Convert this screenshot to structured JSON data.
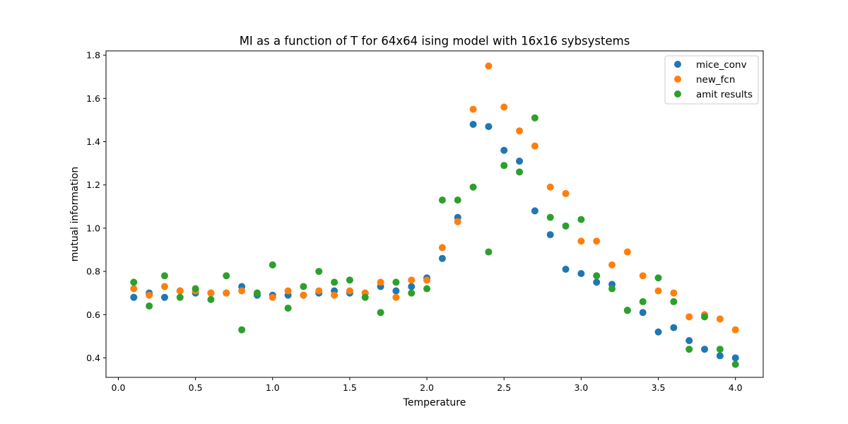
{
  "chart_data": {
    "type": "scatter",
    "title": "MI as a function of T for 64x64 ising model with 16x16 sybsystems",
    "xlabel": "Temperature",
    "ylabel": "mutual information",
    "xlim": [
      -0.08,
      4.18
    ],
    "ylim": [
      0.31,
      1.82
    ],
    "xticks": [
      0.0,
      0.5,
      1.0,
      1.5,
      2.0,
      2.5,
      3.0,
      3.5,
      4.0
    ],
    "xtick_labels": [
      "0.0",
      "0.5",
      "1.0",
      "1.5",
      "2.0",
      "2.5",
      "3.0",
      "3.5",
      "4.0"
    ],
    "yticks": [
      0.4,
      0.6,
      0.8,
      1.0,
      1.2,
      1.4,
      1.6,
      1.8
    ],
    "ytick_labels": [
      "0.4",
      "0.6",
      "0.8",
      "1.0",
      "1.2",
      "1.4",
      "1.6",
      "1.8"
    ],
    "grid": false,
    "legend_position": "top-right",
    "x": [
      0.1,
      0.2,
      0.3,
      0.4,
      0.5,
      0.6,
      0.7,
      0.8,
      0.9,
      1.0,
      1.1,
      1.2,
      1.3,
      1.4,
      1.5,
      1.6,
      1.7,
      1.8,
      1.9,
      2.0,
      2.1,
      2.2,
      2.3,
      2.4,
      2.5,
      2.6,
      2.7,
      2.8,
      2.9,
      3.0,
      3.1,
      3.2,
      3.3,
      3.4,
      3.5,
      3.6,
      3.7,
      3.8,
      3.9,
      4.0
    ],
    "series": [
      {
        "name": "mice_conv",
        "color": "#1f77b4",
        "values": [
          0.68,
          0.7,
          0.68,
          0.71,
          0.7,
          0.7,
          0.7,
          0.73,
          0.69,
          0.69,
          0.69,
          0.69,
          0.7,
          0.71,
          0.7,
          0.7,
          0.73,
          0.71,
          0.73,
          0.77,
          0.86,
          1.05,
          1.48,
          1.47,
          1.36,
          1.31,
          1.08,
          0.97,
          0.81,
          0.79,
          0.75,
          0.74,
          0.62,
          0.61,
          0.52,
          0.54,
          0.48,
          0.44,
          0.41,
          0.4
        ]
      },
      {
        "name": "new_fcn",
        "color": "#ff7f0e",
        "values": [
          0.72,
          0.69,
          0.73,
          0.71,
          0.71,
          0.7,
          0.7,
          0.71,
          0.7,
          0.68,
          0.71,
          0.69,
          0.71,
          0.69,
          0.71,
          0.7,
          0.75,
          0.68,
          0.76,
          0.76,
          0.91,
          1.03,
          1.55,
          1.75,
          1.56,
          1.45,
          1.38,
          1.19,
          1.16,
          0.94,
          0.94,
          0.83,
          0.89,
          0.78,
          0.71,
          0.7,
          0.59,
          0.6,
          0.58,
          0.53
        ]
      },
      {
        "name": "amit results",
        "color": "#2ca02c",
        "values": [
          0.75,
          0.64,
          0.78,
          0.68,
          0.72,
          0.67,
          0.78,
          0.53,
          0.7,
          0.83,
          0.63,
          0.73,
          0.8,
          0.75,
          0.76,
          0.68,
          0.61,
          0.75,
          0.7,
          0.72,
          1.13,
          1.13,
          1.19,
          0.89,
          1.29,
          1.26,
          1.51,
          1.05,
          1.01,
          1.04,
          0.78,
          0.72,
          0.62,
          0.66,
          0.77,
          0.66,
          0.44,
          0.59,
          0.44,
          0.37
        ]
      }
    ]
  }
}
